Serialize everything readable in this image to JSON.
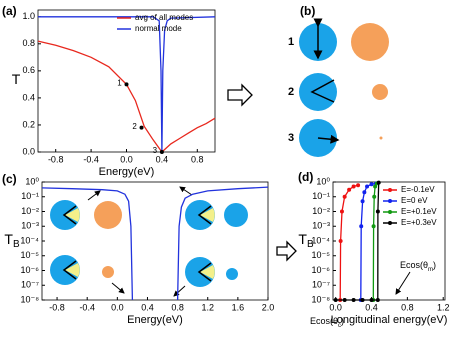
{
  "chart_data": [
    {
      "type": "line",
      "panel_label": "(a)",
      "xlabel": "Energy(eV)",
      "ylabel": "T",
      "xlim": [
        -1,
        1
      ],
      "xticks": [
        -0.8,
        -0.4,
        {
          "value": 0,
          "label": "0.0"
        },
        0.4,
        0.8
      ],
      "ylim": [
        0,
        1.05
      ],
      "yticks": [
        {
          "value": 0,
          "label": "0.0"
        },
        0.2,
        0.4,
        0.6,
        0.8,
        {
          "value": 1,
          "label": "1.0"
        }
      ],
      "legend": "upper right",
      "series": [
        {
          "name": "avg of all modes",
          "color": "#e8281e",
          "x": [
            -1,
            -0.8,
            -0.6,
            -0.4,
            -0.2,
            0,
            0.1,
            0.2,
            0.3,
            0.4,
            0.5,
            0.6,
            0.7,
            0.8,
            0.9,
            1.0
          ],
          "values": [
            0.82,
            0.79,
            0.75,
            0.7,
            0.63,
            0.5,
            0.38,
            0.19,
            0.09,
            0,
            0.06,
            0.1,
            0.14,
            0.18,
            0.21,
            0.25
          ]
        },
        {
          "name": "normal mode",
          "color": "#2233dd",
          "x": [
            -1,
            0.3,
            0.37,
            0.39,
            0.4,
            0.41,
            0.43,
            0.46,
            0.5,
            1.0
          ],
          "values": [
            1,
            1,
            0.97,
            0.6,
            0,
            0.6,
            0.9,
            0.97,
            0.99,
            1
          ]
        }
      ],
      "points": [
        {
          "label": "1",
          "x": 0,
          "y": 0.5
        },
        {
          "label": "2",
          "x": 0.17,
          "y": 0.18
        },
        {
          "label": "3",
          "x": 0.4,
          "y": 0
        }
      ]
    },
    {
      "type": "line",
      "panel_label": "(c)",
      "xlabel": "Energy(eV)",
      "ylabel": "T",
      "ylabel_sub": "B",
      "log_y": true,
      "xlim": [
        -1,
        2
      ],
      "xticks": [
        -0.8,
        -0.4,
        {
          "value": 0,
          "label": "0.0"
        },
        0.4,
        0.8,
        1.2,
        1.6,
        {
          "value": 2,
          "label": "2.0"
        }
      ],
      "ylim": [
        1e-08,
        1
      ],
      "yticks": [
        {
          "value": 1e-08,
          "label": "10⁻⁸"
        },
        {
          "value": 1e-07,
          "label": "10⁻⁷"
        },
        {
          "value": 1e-06,
          "label": "10⁻⁶"
        },
        {
          "value": 1e-05,
          "label": "10⁻⁵"
        },
        {
          "value": 0.0001,
          "label": "10⁻⁴"
        },
        {
          "value": 0.001,
          "label": "10⁻³"
        },
        {
          "value": 0.01,
          "label": "10⁻²"
        },
        {
          "value": 0.1,
          "label": "10⁻¹"
        },
        {
          "value": 1,
          "label": "10⁰"
        }
      ],
      "series": [
        {
          "color": "#2233dd",
          "x": [
            -1,
            -0.6,
            -0.2,
            0,
            0.1,
            0.15,
            0.18,
            0.2,
            0.5,
            0.8,
            0.82,
            0.85,
            0.9,
            1.0,
            1.2,
            1.6,
            2.0
          ],
          "values": [
            0.4,
            0.35,
            0.3,
            0.25,
            0.15,
            0.05,
            0.001,
            1e-08,
            null,
            1e-08,
            0.001,
            0.02,
            0.08,
            0.15,
            0.25,
            0.35,
            0.45
          ]
        }
      ]
    },
    {
      "type": "line",
      "panel_label": "(d)",
      "xlabel": "Longitudinal energy(eV)",
      "ylabel": "T",
      "ylabel_sub": "B",
      "log_y": true,
      "markers": true,
      "xlim": [
        -0.03,
        1.22
      ],
      "xticks": [
        {
          "value": 0,
          "label": "0.0"
        },
        0.4,
        0.8,
        1.2
      ],
      "ylim": [
        1e-08,
        1
      ],
      "yticks": [
        {
          "value": 1e-08,
          "label": "10⁻⁸"
        },
        {
          "value": 1e-07,
          "label": "10⁻⁷"
        },
        {
          "value": 1e-06,
          "label": "10⁻⁶"
        },
        {
          "value": 1e-05,
          "label": "10⁻⁵"
        },
        {
          "value": 0.0001,
          "label": "10⁻⁴"
        },
        {
          "value": 0.001,
          "label": "10⁻³"
        },
        {
          "value": 0.01,
          "label": "10⁻²"
        },
        {
          "value": 0.1,
          "label": "10⁻¹"
        },
        {
          "value": 1,
          "label": "10⁰"
        }
      ],
      "legend": "upper right",
      "series": [
        {
          "name": "E=-0.1eV",
          "color": "#ee1111",
          "x": [
            0.05,
            0.055,
            0.07,
            0.1,
            0.15,
            0.2,
            0.25
          ],
          "values": [
            1e-08,
            0.0001,
            0.01,
            0.1,
            0.3,
            0.5,
            0.6
          ]
        },
        {
          "name": "E=0 eV",
          "color": "#1122ee",
          "x": [
            0.28,
            0.285,
            0.3,
            0.32,
            0.35,
            0.4,
            0.45
          ],
          "values": [
            1e-08,
            0.001,
            0.05,
            0.2,
            0.5,
            0.7,
            0.8
          ]
        },
        {
          "name": "E=+0.1eV",
          "color": "#119911",
          "x": [
            0.42,
            0.423,
            0.43,
            0.44,
            0.46
          ],
          "values": [
            1e-08,
            0.001,
            0.1,
            0.5,
            0.8
          ]
        },
        {
          "name": "E=+0.3eV",
          "color": "#000000",
          "x": [
            0,
            0.1,
            0.2,
            0.3,
            0.4,
            0.47,
            0.471,
            0.48
          ],
          "values": [
            1e-08,
            1e-08,
            1e-08,
            1e-08,
            1e-08,
            1e-08,
            0.01,
            0.9
          ]
        }
      ],
      "annotations": [
        {
          "text": "Ecos(θ",
          "sub": "c",
          "end": ")"
        },
        {
          "text": "Ecos(θ",
          "sub": "m",
          "end": ")"
        }
      ]
    }
  ],
  "diagram": {
    "panel_label": "(b)",
    "rows": [
      "1",
      "2",
      "3"
    ]
  }
}
